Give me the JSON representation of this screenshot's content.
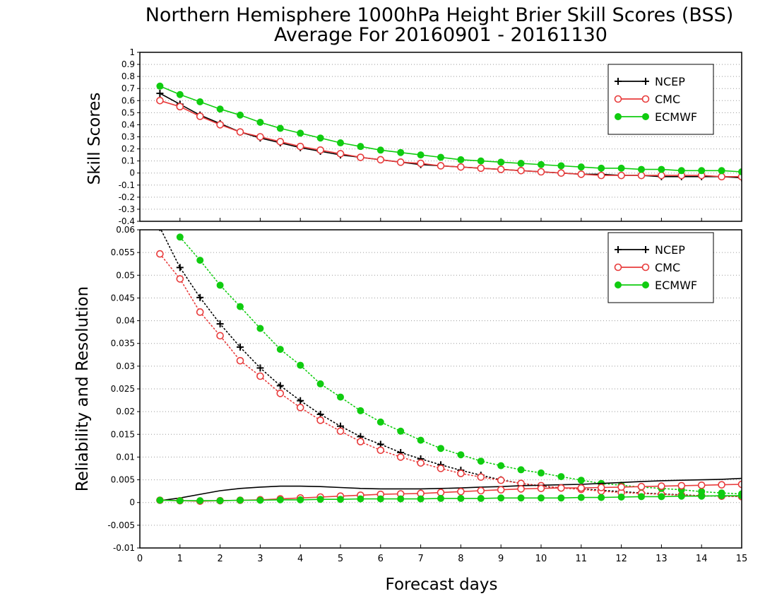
{
  "title_line1": "Northern Hemisphere 1000hPa Height Brier Skill Scores (BSS)",
  "title_line2": "Average For 20160901 - 20161130",
  "colors": {
    "NCEP": "#000000",
    "CMC": "#e83c3c",
    "ECMWF": "#10cc10",
    "grid": "#9a9a9a"
  },
  "chart_data": [
    {
      "type": "line",
      "ylabel": "Skill Scores",
      "xlabel": "",
      "xlim": [
        0,
        15
      ],
      "ylim": [
        -0.4,
        1
      ],
      "x_ticks": [
        0,
        1,
        2,
        3,
        4,
        5,
        6,
        7,
        8,
        9,
        10,
        11,
        12,
        13,
        14,
        15
      ],
      "y_ticks": [
        -0.4,
        -0.3,
        -0.2,
        -0.1,
        0,
        0.1,
        0.2,
        0.3,
        0.4,
        0.5,
        0.6,
        0.7,
        0.8,
        0.9,
        1
      ],
      "y_tick_labels": [
        "-0.4",
        "-0.3",
        "-0.2",
        "-0.1",
        "0",
        "0.1",
        "0.2",
        "0.3",
        "0.4",
        "0.5",
        "0.6",
        "0.7",
        "0.8",
        "0.9",
        "1"
      ],
      "grid_y": true,
      "legend": {
        "position": "top-right",
        "entries": [
          "NCEP",
          "CMC",
          "ECMWF"
        ]
      },
      "x": [
        0.5,
        1,
        1.5,
        2,
        2.5,
        3,
        3.5,
        4,
        4.5,
        5,
        5.5,
        6,
        6.5,
        7,
        7.5,
        8,
        8.5,
        9,
        9.5,
        10,
        10.5,
        11,
        11.5,
        12,
        12.5,
        13,
        13.5,
        14,
        14.5,
        15
      ],
      "series": [
        {
          "name": "NCEP",
          "style": "solid",
          "marker": "plus",
          "values": [
            0.66,
            0.57,
            0.48,
            0.41,
            0.34,
            0.29,
            0.25,
            0.21,
            0.18,
            0.15,
            0.13,
            0.11,
            0.09,
            0.07,
            0.06,
            0.05,
            0.04,
            0.03,
            0.02,
            0.01,
            0.0,
            -0.01,
            -0.01,
            -0.02,
            -0.02,
            -0.03,
            -0.03,
            -0.03,
            -0.03,
            -0.04
          ]
        },
        {
          "name": "CMC",
          "style": "solid",
          "marker": "open-circle",
          "values": [
            0.6,
            0.55,
            0.47,
            0.4,
            0.34,
            0.3,
            0.26,
            0.22,
            0.19,
            0.16,
            0.13,
            0.11,
            0.09,
            0.08,
            0.06,
            0.05,
            0.04,
            0.03,
            0.02,
            0.01,
            0.0,
            -0.01,
            -0.02,
            -0.02,
            -0.02,
            -0.02,
            -0.02,
            -0.02,
            -0.03,
            -0.03
          ]
        },
        {
          "name": "ECMWF",
          "style": "solid",
          "marker": "filled-circle",
          "values": [
            0.72,
            0.65,
            0.59,
            0.53,
            0.48,
            0.42,
            0.37,
            0.33,
            0.29,
            0.25,
            0.22,
            0.19,
            0.17,
            0.15,
            0.13,
            0.11,
            0.1,
            0.09,
            0.08,
            0.07,
            0.06,
            0.05,
            0.04,
            0.04,
            0.03,
            0.03,
            0.02,
            0.02,
            0.02,
            0.01
          ]
        }
      ]
    },
    {
      "type": "line",
      "ylabel": "Reliability and Resolution",
      "xlabel": "Forecast days",
      "xlim": [
        0,
        15
      ],
      "ylim": [
        -0.01,
        0.06
      ],
      "x_ticks": [
        0,
        1,
        2,
        3,
        4,
        5,
        6,
        7,
        8,
        9,
        10,
        11,
        12,
        13,
        14,
        15
      ],
      "y_ticks": [
        -0.01,
        -0.005,
        0,
        0.005,
        0.01,
        0.015,
        0.02,
        0.025,
        0.03,
        0.035,
        0.04,
        0.045,
        0.05,
        0.055,
        0.06
      ],
      "y_tick_labels": [
        "-0.01",
        "-0.005",
        "0",
        "0.005",
        "0.01",
        "0.015",
        "0.02",
        "0.025",
        "0.03",
        "0.035",
        "0.04",
        "0.045",
        "0.05",
        "0.055",
        "0.06"
      ],
      "grid_y": true,
      "legend": {
        "position": "top-right",
        "entries": [
          "NCEP",
          "CMC",
          "ECMWF"
        ]
      },
      "x": [
        0.5,
        1,
        1.5,
        2,
        2.5,
        3,
        3.5,
        4,
        4.5,
        5,
        5.5,
        6,
        6.5,
        7,
        7.5,
        8,
        8.5,
        9,
        9.5,
        10,
        10.5,
        11,
        11.5,
        12,
        12.5,
        13,
        13.5,
        14,
        14.5,
        15
      ],
      "series": [
        {
          "name": "NCEP",
          "group": "resolution",
          "style": "dotted",
          "marker": "plus",
          "values": [
            0.0605,
            0.0517,
            0.0451,
            0.0393,
            0.0342,
            0.0296,
            0.0257,
            0.0224,
            0.0194,
            0.0168,
            0.0145,
            0.0128,
            0.011,
            0.0096,
            0.0083,
            0.0071,
            0.006,
            0.005,
            0.0042,
            0.0036,
            0.0032,
            0.003,
            0.0027,
            0.0024,
            0.0021,
            0.0019,
            0.0017,
            0.0015,
            0.0014,
            0.0013
          ]
        },
        {
          "name": "CMC",
          "group": "resolution",
          "style": "dotted",
          "marker": "open-circle",
          "values": [
            0.0547,
            0.0492,
            0.0419,
            0.0367,
            0.0312,
            0.0278,
            0.024,
            0.0209,
            0.0181,
            0.0157,
            0.0134,
            0.0115,
            0.01,
            0.0087,
            0.0075,
            0.0064,
            0.0056,
            0.0049,
            0.0042,
            0.0037,
            0.0032,
            0.0029,
            0.0025,
            0.0022,
            0.002,
            0.0018,
            0.0016,
            0.0015,
            0.0014,
            0.0013
          ]
        },
        {
          "name": "ECMWF",
          "group": "resolution",
          "style": "dotted",
          "marker": "filled-circle",
          "values": [
            null,
            0.0584,
            0.0533,
            0.0478,
            0.0431,
            0.0383,
            0.0337,
            0.0302,
            0.0261,
            0.0232,
            0.0202,
            0.0177,
            0.0157,
            0.0137,
            0.0119,
            0.0105,
            0.0091,
            0.0081,
            0.0072,
            0.0065,
            0.0057,
            0.0049,
            0.0042,
            0.0038,
            0.0034,
            0.0031,
            0.0028,
            0.0024,
            0.0021,
            0.0019
          ]
        },
        {
          "name": "NCEP",
          "group": "reliability",
          "style": "solid",
          "marker": "none",
          "values": [
            0.0004,
            0.001,
            0.0018,
            0.0026,
            0.0031,
            0.0034,
            0.0036,
            0.0036,
            0.0035,
            0.0033,
            0.0031,
            0.003,
            0.003,
            0.003,
            0.0031,
            0.0032,
            0.0034,
            0.0035,
            0.0037,
            0.0038,
            0.0039,
            0.004,
            0.0042,
            0.0044,
            0.0046,
            0.0048,
            0.0049,
            0.005,
            0.0051,
            0.0053
          ]
        },
        {
          "name": "CMC",
          "group": "reliability",
          "style": "solid",
          "marker": "open-circle",
          "values": [
            0.0005,
            0.0004,
            0.0003,
            0.0004,
            0.0005,
            0.0006,
            0.0008,
            0.001,
            0.0012,
            0.0014,
            0.0016,
            0.0018,
            0.0019,
            0.002,
            0.0022,
            0.0024,
            0.0026,
            0.0028,
            0.003,
            0.0031,
            0.0032,
            0.0032,
            0.0033,
            0.0034,
            0.0035,
            0.0036,
            0.0037,
            0.0038,
            0.0039,
            0.004
          ]
        },
        {
          "name": "ECMWF",
          "group": "reliability",
          "style": "solid",
          "marker": "filled-circle",
          "values": [
            0.0005,
            0.0004,
            0.0004,
            0.0004,
            0.0005,
            0.0005,
            0.0006,
            0.0006,
            0.0007,
            0.0007,
            0.0008,
            0.0008,
            0.0008,
            0.0008,
            0.0009,
            0.0009,
            0.0009,
            0.001,
            0.001,
            0.001,
            0.001,
            0.0011,
            0.0011,
            0.0012,
            0.0013,
            0.0013,
            0.0014,
            0.0014,
            0.0015,
            0.0015
          ]
        }
      ]
    }
  ]
}
